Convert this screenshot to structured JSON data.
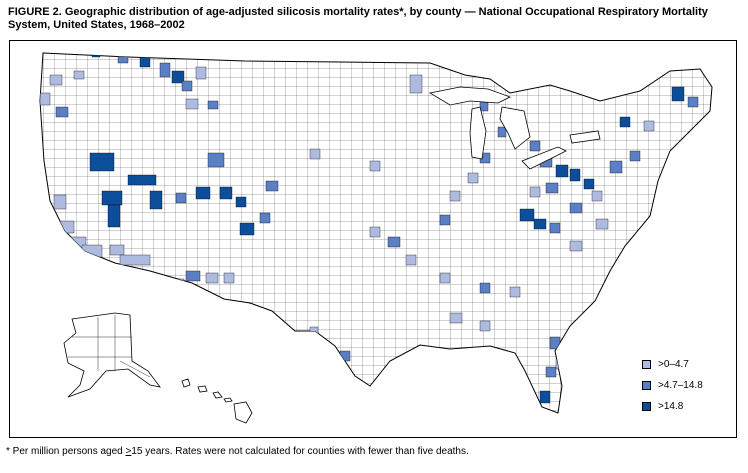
{
  "figure": {
    "title_line1": "FIGURE 2. Geographic distribution of age-adjusted silicosis mortality rates*, by county — National Occupational Respiratory Mortality",
    "title_line2": "System, United States, 1968–2002"
  },
  "legend": {
    "items": [
      {
        "label": ">0–4.7",
        "color": "#aebae0"
      },
      {
        "label": ">4.7–14.8",
        "color": "#5b7fc5"
      },
      {
        "label": ">14.8",
        "color": "#0d4e9a"
      }
    ]
  },
  "footnote": {
    "part1": "* Per million persons aged ",
    "ge": ">",
    "part2": "15 years. Rates were not calculated for counties with fewer than five deaths."
  },
  "colors": {
    "none": "#ffffff",
    "border": "#000000"
  }
}
